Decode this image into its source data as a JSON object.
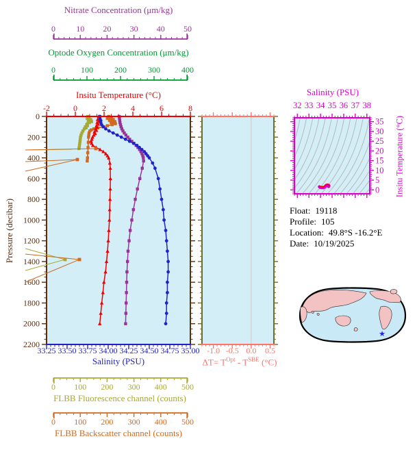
{
  "colors": {
    "nitrate": "#993399",
    "oxygen": "#009933",
    "temperature": "#ee0000",
    "salinity": "#2222cc",
    "pressure": "#5a2d0e",
    "fluorescence": "#a8a832",
    "backscatter": "#d2691e",
    "delta": "#ff7468",
    "delta_side_border": "#6e6e23",
    "magenta": "#dd00cc",
    "plot_bg": "#d3eef7",
    "contour": "#b4b4b4",
    "zero_line": "#c9c9c9",
    "map_land": "#f3c3c3",
    "map_ocean": "#c9e9f6",
    "map_outline": "#000000",
    "marker_star": "#2222ee",
    "info_text": "#000000"
  },
  "top_axes": {
    "nitrate": {
      "title": "Nitrate Concentration (μm/kg)",
      "tick_labels": [
        "0",
        "10",
        "20",
        "30",
        "40",
        "50"
      ],
      "tick_values": [
        0,
        10,
        20,
        30,
        40,
        50
      ],
      "minor_step": 2,
      "range": [
        0,
        50
      ]
    },
    "oxygen": {
      "title": "Optode Oxygen Concentration (μm/kg)",
      "tick_labels": [
        "0",
        "100",
        "200",
        "300",
        "400"
      ],
      "tick_values": [
        0,
        100,
        200,
        300,
        400
      ],
      "minor_step": 20,
      "range": [
        0,
        400
      ]
    },
    "temperature": {
      "title": "Insitu Temperature (°C)",
      "tick_labels": [
        "-2",
        "0",
        "2",
        "4",
        "6",
        "8"
      ],
      "tick_values": [
        -2,
        0,
        2,
        4,
        6,
        8
      ],
      "minor_step": 0.5,
      "range": [
        -2,
        8
      ]
    }
  },
  "left_axis": {
    "title": "Pressure (decibar)",
    "tick_labels": [
      "0",
      "200",
      "400",
      "600",
      "800",
      "1000",
      "1200",
      "1400",
      "1600",
      "1800",
      "2000",
      "2200"
    ],
    "tick_values": [
      0,
      200,
      400,
      600,
      800,
      1000,
      1200,
      1400,
      1600,
      1800,
      2000,
      2200
    ],
    "minor_step": 50,
    "range": [
      0,
      2200
    ]
  },
  "bottom_axes": {
    "salinity": {
      "title": "Salinity (PSU)",
      "tick_labels": [
        "33.25",
        "33.50",
        "33.75",
        "34.00",
        "34.25",
        "34.50",
        "34.75",
        "35.00"
      ],
      "tick_values": [
        33.25,
        33.5,
        33.75,
        34.0,
        34.25,
        34.5,
        34.75,
        35.0
      ],
      "minor_step": 0.05,
      "range": [
        33.25,
        35.0
      ]
    },
    "fluorescence": {
      "title": "FLBB Fluorescence channel (counts)",
      "tick_labels": [
        "0",
        "100",
        "200",
        "300",
        "400",
        "500"
      ],
      "tick_values": [
        0,
        100,
        200,
        300,
        400,
        500
      ],
      "minor_step": 25,
      "range": [
        0,
        500
      ]
    },
    "backscatter": {
      "title": "FLBB Backscatter channel (counts)",
      "tick_labels": [
        "0",
        "100",
        "200",
        "300",
        "400",
        "500"
      ],
      "tick_values": [
        0,
        100,
        200,
        300,
        400,
        500
      ],
      "minor_step": 25,
      "range": [
        0,
        500
      ]
    }
  },
  "delta_panel": {
    "title_parts": [
      "ΔT= T",
      "Opt",
      " - T",
      "SBE",
      " (°C)"
    ],
    "tick_labels": [
      "-1.0",
      "-0.5",
      "0.0",
      "0.5"
    ],
    "tick_values": [
      -1.0,
      -0.5,
      0.0,
      0.5
    ],
    "minor_step": 0.1,
    "range": [
      -1.3,
      0.6
    ],
    "zero_value": 0.0
  },
  "ts_panel": {
    "title": "Salinity (PSU)",
    "right_title": "Insitu Temperature (°C)",
    "sal_tick_labels": [
      "32",
      "33",
      "34",
      "35",
      "36",
      "37",
      "38"
    ],
    "sal_tick_values": [
      32,
      33,
      34,
      35,
      36,
      37,
      38
    ],
    "sal_minor": 0.25,
    "sal_range": [
      31.75,
      38.25
    ],
    "temp_tick_labels": [
      "0",
      "5",
      "10",
      "15",
      "20",
      "25",
      "30",
      "35"
    ],
    "temp_tick_values": [
      0,
      5,
      10,
      15,
      20,
      25,
      30,
      35
    ],
    "temp_minor": 1,
    "temp_range": [
      -2,
      37
    ],
    "n_contours": 22
  },
  "info": {
    "rows": [
      {
        "label": "Float:",
        "value": "19118"
      },
      {
        "label": "Profile:",
        "value": "105"
      },
      {
        "label": "Location:",
        "value": "49.8°S -16.2°E"
      },
      {
        "label": "Date:",
        "value": "10/19/2025"
      }
    ]
  },
  "map": {
    "marker": "star",
    "marker_color": "#2222ee"
  },
  "chart_data": {
    "type": "line",
    "title": "Float profile plot",
    "pressure_axis": {
      "label": "Pressure (decibar)",
      "range": [
        0,
        2200
      ]
    },
    "series": [
      {
        "name": "insitu_temperature",
        "axis": "temperature",
        "units": "°C",
        "marker": "triangle",
        "points": [
          [
            0,
            1.62
          ],
          [
            15,
            1.7
          ],
          [
            30,
            1.55
          ],
          [
            45,
            1.66
          ],
          [
            60,
            1.52
          ],
          [
            75,
            1.6
          ],
          [
            90,
            1.47
          ],
          [
            105,
            1.52
          ],
          [
            120,
            1.42
          ],
          [
            135,
            1.47
          ],
          [
            150,
            1.33
          ],
          [
            165,
            1.38
          ],
          [
            180,
            1.28
          ],
          [
            200,
            1.2
          ],
          [
            220,
            1.15
          ],
          [
            240,
            1.1
          ],
          [
            260,
            1.13
          ],
          [
            280,
            1.22
          ],
          [
            300,
            1.45
          ],
          [
            320,
            1.72
          ],
          [
            340,
            1.95
          ],
          [
            360,
            2.12
          ],
          [
            380,
            2.24
          ],
          [
            400,
            2.32
          ],
          [
            450,
            2.4
          ],
          [
            500,
            2.43
          ],
          [
            600,
            2.44
          ],
          [
            700,
            2.43
          ],
          [
            800,
            2.41
          ],
          [
            900,
            2.39
          ],
          [
            1000,
            2.37
          ],
          [
            1100,
            2.33
          ],
          [
            1200,
            2.29
          ],
          [
            1300,
            2.24
          ],
          [
            1400,
            2.17
          ],
          [
            1500,
            2.1
          ],
          [
            1600,
            1.99
          ],
          [
            1700,
            1.92
          ],
          [
            1800,
            1.84
          ],
          [
            1900,
            1.77
          ],
          [
            2000,
            1.7
          ]
        ]
      },
      {
        "name": "salinity",
        "axis": "salinity",
        "units": "PSU",
        "marker": "circle",
        "points": [
          [
            0,
            33.9
          ],
          [
            20,
            33.9
          ],
          [
            40,
            33.91
          ],
          [
            60,
            33.91
          ],
          [
            80,
            33.92
          ],
          [
            100,
            33.94
          ],
          [
            120,
            33.97
          ],
          [
            140,
            34.01
          ],
          [
            160,
            34.06
          ],
          [
            180,
            34.11
          ],
          [
            200,
            34.16
          ],
          [
            220,
            34.21
          ],
          [
            240,
            34.26
          ],
          [
            260,
            34.31
          ],
          [
            280,
            34.35
          ],
          [
            300,
            34.38
          ],
          [
            320,
            34.41
          ],
          [
            340,
            34.44
          ],
          [
            360,
            34.46
          ],
          [
            380,
            34.48
          ],
          [
            400,
            34.5
          ],
          [
            450,
            34.54
          ],
          [
            500,
            34.57
          ],
          [
            600,
            34.61
          ],
          [
            700,
            34.63
          ],
          [
            800,
            34.65
          ],
          [
            900,
            34.67
          ],
          [
            1000,
            34.68
          ],
          [
            1100,
            34.7
          ],
          [
            1200,
            34.71
          ],
          [
            1300,
            34.72
          ],
          [
            1400,
            34.73
          ],
          [
            1500,
            34.73
          ],
          [
            1600,
            34.72
          ],
          [
            1700,
            34.72
          ],
          [
            1800,
            34.71
          ],
          [
            1900,
            34.71
          ],
          [
            2000,
            34.7
          ]
        ]
      },
      {
        "name": "nitrate",
        "axis": "nitrate",
        "units": "μm/kg",
        "marker": "square",
        "points": [
          [
            0,
            24.5
          ],
          [
            20,
            24.6
          ],
          [
            40,
            24.7
          ],
          [
            60,
            24.8
          ],
          [
            80,
            25.0
          ],
          [
            100,
            25.2
          ],
          [
            120,
            25.5
          ],
          [
            140,
            25.9
          ],
          [
            160,
            26.4
          ],
          [
            180,
            27.0
          ],
          [
            200,
            27.7
          ],
          [
            220,
            28.4
          ],
          [
            240,
            29.2
          ],
          [
            260,
            30.0
          ],
          [
            280,
            30.8
          ],
          [
            300,
            31.5
          ],
          [
            320,
            32.1
          ],
          [
            340,
            32.6
          ],
          [
            360,
            33.0
          ],
          [
            380,
            33.3
          ],
          [
            400,
            33.5
          ],
          [
            430,
            33.6
          ],
          [
            500,
            33.1
          ],
          [
            600,
            32.2
          ],
          [
            700,
            31.3
          ],
          [
            800,
            30.5
          ],
          [
            900,
            29.8
          ],
          [
            1000,
            29.2
          ],
          [
            1100,
            28.6
          ],
          [
            1200,
            28.2
          ],
          [
            1300,
            27.8
          ],
          [
            1400,
            27.6
          ],
          [
            1500,
            27.4
          ],
          [
            1600,
            27.3
          ],
          [
            1700,
            27.2
          ],
          [
            1800,
            27.1
          ],
          [
            1900,
            27.0
          ],
          [
            2000,
            26.9
          ]
        ]
      },
      {
        "name": "fluorescence",
        "axis": "fluorescence",
        "units": "counts",
        "marker": "square",
        "points": [
          [
            0,
            128
          ],
          [
            10,
            133
          ],
          [
            20,
            126
          ],
          [
            30,
            139
          ],
          [
            40,
            130
          ],
          [
            50,
            142
          ],
          [
            60,
            134
          ],
          [
            70,
            127
          ],
          [
            80,
            124
          ],
          [
            90,
            127
          ],
          [
            100,
            119
          ],
          [
            110,
            122
          ],
          [
            120,
            115
          ],
          [
            140,
            110
          ],
          [
            160,
            106
          ],
          [
            180,
            103
          ],
          [
            200,
            101
          ],
          [
            220,
            100
          ],
          [
            240,
            99
          ],
          [
            260,
            98
          ],
          [
            280,
            97
          ],
          [
            300,
            96
          ],
          [
            310,
            95
          ]
        ]
      },
      {
        "name": "backscatter",
        "axis": "backscatter",
        "units": "counts",
        "marker": "square",
        "points": [
          [
            0,
            206
          ],
          [
            10,
            216
          ],
          [
            20,
            201
          ],
          [
            30,
            223
          ],
          [
            40,
            209
          ],
          [
            50,
            229
          ],
          [
            60,
            215
          ],
          [
            70,
            231
          ],
          [
            80,
            219
          ],
          [
            90,
            201
          ],
          [
            100,
            186
          ],
          [
            110,
            166
          ],
          [
            120,
            151
          ],
          [
            130,
            141
          ],
          [
            140,
            136
          ],
          [
            160,
            133
          ],
          [
            180,
            132
          ],
          [
            200,
            131
          ],
          [
            250,
            130
          ],
          [
            300,
            129
          ],
          [
            350,
            128
          ],
          [
            400,
            127
          ],
          [
            430,
            126
          ]
        ]
      }
    ],
    "ts_profile": {
      "x_units": "PSU",
      "y_units": "°C",
      "points": [
        [
          33.9,
          1.62
        ],
        [
          33.93,
          1.45
        ],
        [
          33.97,
          1.3
        ],
        [
          34.05,
          1.15
        ],
        [
          34.16,
          1.2
        ],
        [
          34.26,
          1.1
        ],
        [
          34.35,
          1.45
        ],
        [
          34.44,
          1.95
        ],
        [
          34.5,
          2.32
        ],
        [
          34.57,
          2.43
        ],
        [
          34.63,
          2.43
        ],
        [
          34.68,
          2.37
        ],
        [
          34.71,
          2.29
        ],
        [
          34.73,
          2.17
        ],
        [
          34.73,
          2.1
        ],
        [
          34.72,
          1.99
        ],
        [
          34.71,
          1.84
        ],
        [
          34.7,
          1.7
        ]
      ]
    },
    "delta_T": {
      "points": []
    }
  },
  "decor": {
    "outlier_segments": [
      {
        "color": "fluorescence",
        "pts": [
          [
            105,
            218
          ],
          [
            37,
            219
          ]
        ]
      },
      {
        "color": "backscatter",
        "pts": [
          [
            37,
            219
          ],
          [
            140,
            217
          ]
        ],
        "marker": [
          140,
          217
        ]
      },
      {
        "color": "backscatter",
        "pts": [
          [
            37,
            236
          ],
          [
            113,
            233
          ]
        ],
        "marker": [
          113,
          233
        ]
      },
      {
        "color": "backscatter",
        "pts": [
          [
            113,
            233
          ],
          [
            37,
            250
          ]
        ]
      },
      {
        "color": "fluorescence",
        "pts": [
          [
            37,
            363
          ],
          [
            95,
            379
          ]
        ],
        "marker": [
          95,
          379
        ]
      },
      {
        "color": "fluorescence",
        "pts": [
          [
            95,
            379
          ],
          [
            37,
            395
          ]
        ]
      },
      {
        "color": "backscatter",
        "pts": [
          [
            37,
            371
          ],
          [
            116,
            379
          ]
        ],
        "marker": [
          116,
          379
        ]
      },
      {
        "color": "backscatter",
        "pts": [
          [
            116,
            379
          ],
          [
            37,
            412
          ]
        ]
      }
    ]
  }
}
